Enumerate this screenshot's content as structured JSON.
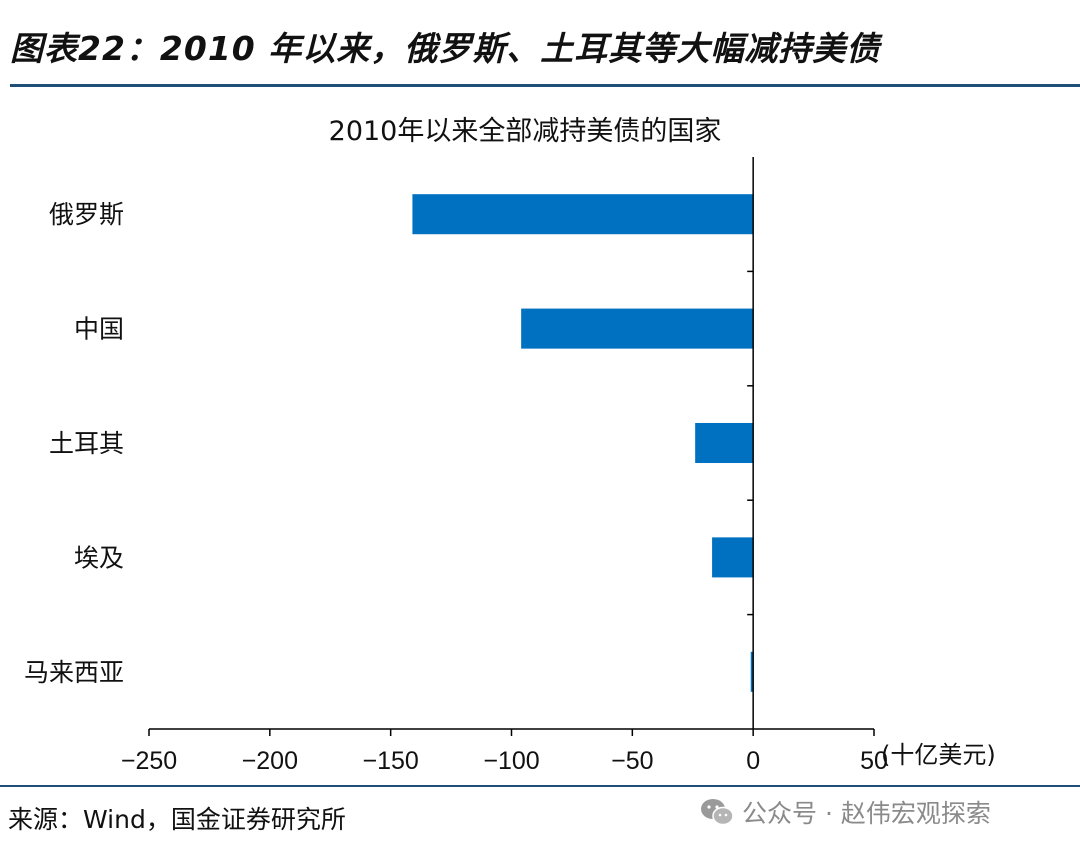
{
  "figure": {
    "title": "图表22：2010 年以来，俄罗斯、土耳其等大幅减持美债",
    "source": "来源：Wind，国金证券研究所",
    "watermark": "公众号 · 赵伟宏观探索",
    "watermark_icon": "wechat-icon"
  },
  "colors": {
    "bar": "#0070c0",
    "rule": "#1f4e79",
    "axis": "#000000"
  },
  "chart_data": {
    "type": "bar",
    "orientation": "horizontal",
    "title": "2010年以来全部减持美债的国家",
    "categories": [
      "俄罗斯",
      "中国",
      "土耳其",
      "埃及",
      "马来西亚"
    ],
    "values": [
      -141,
      -96,
      -24,
      -17,
      -1
    ],
    "x_ticks": [
      -250,
      -200,
      -150,
      -100,
      -50,
      0,
      50
    ],
    "x_tick_labels": [
      "−250",
      "−200",
      "−150",
      "−100",
      "−50",
      "0",
      "50"
    ],
    "xlim": [
      -250,
      50
    ],
    "unit_label": "(十亿美元)",
    "grid": false,
    "legend": "none"
  }
}
